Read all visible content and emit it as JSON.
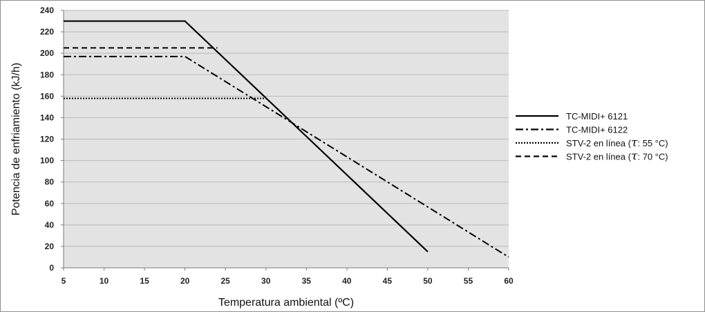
{
  "chart_data": {
    "type": "line",
    "title": "",
    "xlabel": "Temperatura ambiental (ºC)",
    "ylabel": "Potencia de enfriamiento (kJ/h)",
    "xlim": [
      5,
      60
    ],
    "ylim": [
      0,
      240
    ],
    "xticks": [
      5,
      10,
      15,
      20,
      25,
      30,
      35,
      40,
      45,
      50,
      55,
      60
    ],
    "yticks": [
      0,
      20,
      40,
      60,
      80,
      100,
      120,
      140,
      160,
      180,
      200,
      220,
      240
    ],
    "grid": true,
    "plot_background": "#e3e3e3",
    "legend_position": "right",
    "series": [
      {
        "name": "TC-MIDI+ 6121",
        "style": "solid",
        "color": "#000000",
        "x": [
          5,
          20,
          50
        ],
        "y": [
          230,
          230,
          15
        ]
      },
      {
        "name": "TC-MIDI+ 6122",
        "style": "dashdot",
        "color": "#000000",
        "x": [
          5,
          20,
          60
        ],
        "y": [
          197,
          197,
          10
        ]
      },
      {
        "name": "STV-2 en línea (τ: 55 °C)",
        "style": "dotted",
        "color": "#000000",
        "x": [
          5,
          30
        ],
        "y": [
          158,
          158
        ]
      },
      {
        "name": "STV-2 en línea (τ: 70 °C)",
        "style": "dashed",
        "color": "#000000",
        "x": [
          5,
          24
        ],
        "y": [
          205,
          205
        ]
      }
    ],
    "legend": [
      {
        "pre": "TC-MIDI+ 6121",
        "tau": "",
        "post": ""
      },
      {
        "pre": "TC-MIDI+ 6122",
        "tau": "",
        "post": ""
      },
      {
        "pre": "STV-2 en línea (",
        "tau": "τ",
        "post": ": 55 °C)"
      },
      {
        "pre": "STV-2 en línea (",
        "tau": "τ",
        "post": ": 70 °C)"
      }
    ]
  }
}
